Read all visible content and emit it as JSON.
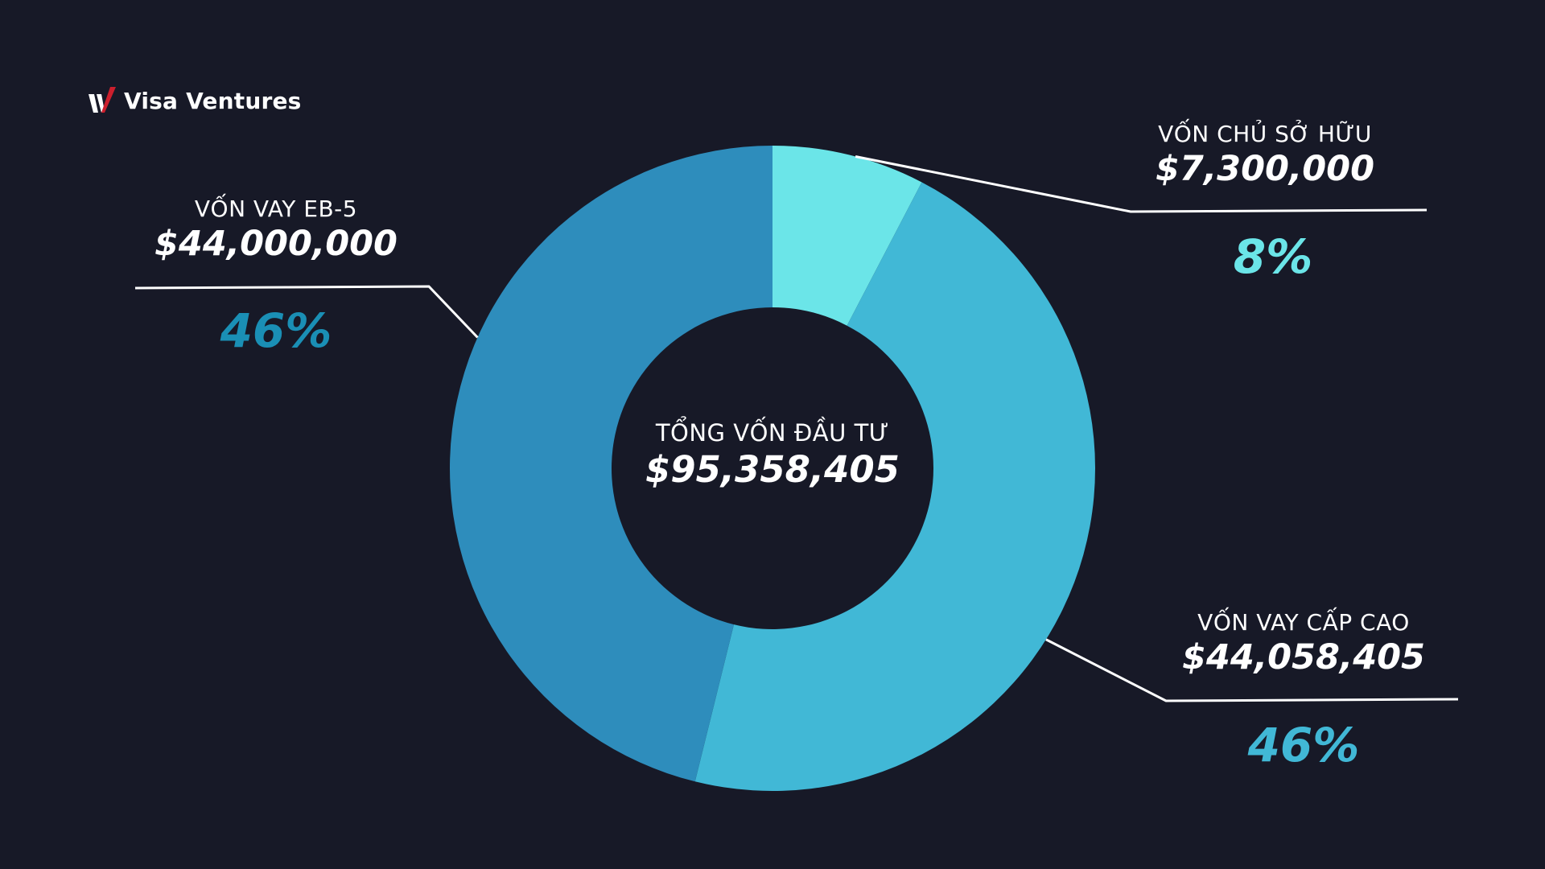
{
  "brand": {
    "name": "Visa Ventures",
    "mark_color": "#cc1f2d"
  },
  "colors": {
    "background": "#171927",
    "leader_line": "#ffffff"
  },
  "chart_data": {
    "type": "pie",
    "style": "donut",
    "center_label": "TỔNG VỐN ĐẦU TƯ",
    "center_value": "$95,358,405",
    "total": 95358405,
    "slices": [
      {
        "label": "VỐN CHỦ SỞ HỮU",
        "amount_text": "$7,300,000",
        "value": 7300000,
        "percent_text": "8%",
        "color": "#6be5e8",
        "percent_color": "#6be5e8"
      },
      {
        "label": "VỐN VAY CẤP CAO",
        "amount_text": "$44,058,405",
        "value": 44058405,
        "percent_text": "46%",
        "color": "#41b8d6",
        "percent_color": "#41b8d6"
      },
      {
        "label": "VỐN VAY EB-5",
        "amount_text": "$44,000,000",
        "value": 44000000,
        "percent_text": "46%",
        "color": "#2e8dbc",
        "percent_color": "#1a8fb5"
      }
    ]
  }
}
